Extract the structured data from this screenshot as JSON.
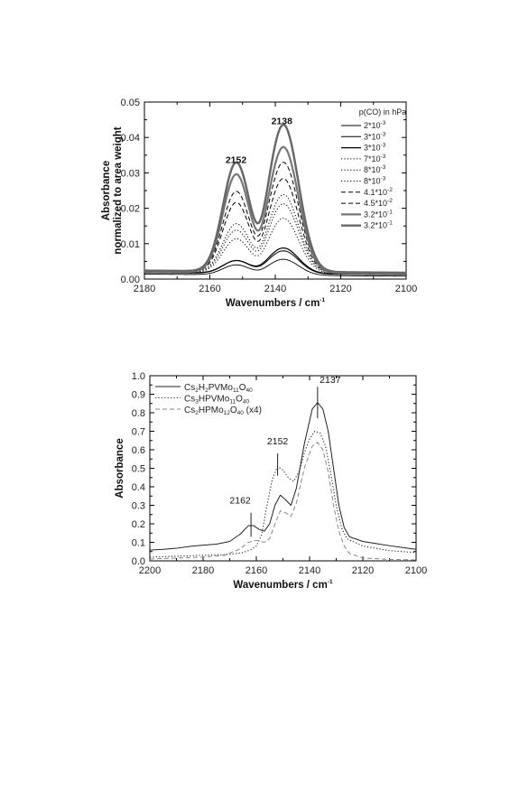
{
  "chart_data": [
    {
      "type": "line",
      "xlabel": "Wavenumbers / cm",
      "xlabel_sup": "-1",
      "ylabel": "Absorbance",
      "ylabel2": "normalized to area weight",
      "xlim": [
        2180,
        2100
      ],
      "ylim": [
        0,
        0.05
      ],
      "xticks": [
        2180,
        2160,
        2140,
        2120,
        2100
      ],
      "yticks": [
        0.0,
        0.01,
        0.02,
        0.03,
        0.04,
        0.05
      ],
      "ytick_labels": [
        "0.00",
        "0.01",
        "0.02",
        "0.03",
        "0.04",
        "0.05"
      ],
      "legend_title": "p(CO) in hPa",
      "legend_position": "top-right",
      "peak_labels": [
        {
          "text": "2152",
          "x": 2152,
          "y": 0.0315
        },
        {
          "text": "2138",
          "x": 2138,
          "y": 0.0425
        }
      ],
      "series": [
        {
          "name_base": "2*10",
          "name_exp": "-3",
          "style": "solid",
          "color": "#000000",
          "width": 0.9,
          "peaks": [
            0.0028,
            0.0045
          ],
          "baseline": 0.0008
        },
        {
          "name_base": "3*10",
          "name_exp": "-3",
          "style": "solid",
          "color": "#000000",
          "width": 1.0,
          "peaks": [
            0.0036,
            0.0065
          ],
          "baseline": 0.0012
        },
        {
          "name_base": "3*10",
          "name_exp": "-3",
          "style": "solid",
          "color": "#000000",
          "width": 1.2,
          "peaks": [
            0.0035,
            0.0072
          ],
          "baseline": 0.0013
        },
        {
          "name_base": "7*10",
          "name_exp": "-3",
          "style": "dotted",
          "color": "#000000",
          "width": 1.0,
          "peaks": [
            0.0095,
            0.0155
          ],
          "baseline": 0.0014
        },
        {
          "name_base": "8*10",
          "name_exp": "-3",
          "style": "dotted",
          "color": "#000000",
          "width": 1.0,
          "peaks": [
            0.0118,
            0.0195
          ],
          "baseline": 0.0015
        },
        {
          "name_base": "8*10",
          "name_exp": "-3",
          "style": "dotted",
          "color": "#000000",
          "width": 1.0,
          "peaks": [
            0.0135,
            0.022
          ],
          "baseline": 0.0016
        },
        {
          "name_base": "4.1*10",
          "name_exp": "-2",
          "style": "dashed",
          "color": "#000000",
          "width": 1.0,
          "peaks": [
            0.0195,
            0.0265
          ],
          "baseline": 0.0016
        },
        {
          "name_base": "4.5*10",
          "name_exp": "-2",
          "style": "dashed",
          "color": "#000000",
          "width": 1.0,
          "peaks": [
            0.0225,
            0.031
          ],
          "baseline": 0.0017
        },
        {
          "name_base": "3.2*10",
          "name_exp": "-1",
          "style": "solid",
          "color": "#777777",
          "width": 2.2,
          "peaks": [
            0.0275,
            0.0355
          ],
          "baseline": 0.0015
        },
        {
          "name_base": "3.2*10",
          "name_exp": "-1",
          "style": "solid",
          "color": "#666666",
          "width": 2.4,
          "peaks": [
            0.0305,
            0.0415
          ],
          "baseline": 0.0018
        }
      ]
    },
    {
      "type": "line",
      "xlabel": "Wavenumbers / cm",
      "xlabel_sup": "-1",
      "ylabel": "Absorbance",
      "xlim": [
        2200,
        2100
      ],
      "ylim": [
        0,
        1.0
      ],
      "xticks": [
        2200,
        2180,
        2160,
        2140,
        2120,
        2100
      ],
      "yticks": [
        0.0,
        0.1,
        0.2,
        0.3,
        0.4,
        0.5,
        0.6,
        0.7,
        0.8,
        0.9,
        1.0
      ],
      "ytick_labels": [
        "0.0",
        "0.1",
        "0.2",
        "0.3",
        "0.4",
        "0.5",
        "0.6",
        "0.7",
        "0.8",
        "0.9",
        "1.0"
      ],
      "legend_position": "top-left",
      "peak_labels": [
        {
          "text": "2162",
          "x": 2162,
          "y": 0.255
        },
        {
          "text": "2152",
          "x": 2152,
          "y": 0.58
        },
        {
          "text": "2137",
          "x": 2137,
          "y": 0.88
        }
      ],
      "series": [
        {
          "name_parts": [
            [
              "Cs",
              ""
            ],
            [
              "2",
              "sub"
            ],
            [
              "H",
              ""
            ],
            [
              "2",
              "sub"
            ],
            [
              "PVMo",
              ""
            ],
            [
              "11",
              "sub"
            ],
            [
              "O",
              ""
            ],
            [
              "40",
              "sub"
            ]
          ],
          "style": "solid",
          "color": "#222222",
          "width": 1.0,
          "points": [
            [
              2200,
              0.058
            ],
            [
              2195,
              0.062
            ],
            [
              2190,
              0.068
            ],
            [
              2185,
              0.078
            ],
            [
              2180,
              0.085
            ],
            [
              2175,
              0.09
            ],
            [
              2170,
              0.105
            ],
            [
              2166,
              0.145
            ],
            [
              2163,
              0.19
            ],
            [
              2161,
              0.19
            ],
            [
              2159,
              0.17
            ],
            [
              2157,
              0.16
            ],
            [
              2155,
              0.2
            ],
            [
              2153,
              0.3
            ],
            [
              2151,
              0.355
            ],
            [
              2149,
              0.33
            ],
            [
              2147,
              0.3
            ],
            [
              2145,
              0.39
            ],
            [
              2142,
              0.63
            ],
            [
              2139,
              0.82
            ],
            [
              2137,
              0.855
            ],
            [
              2135,
              0.82
            ],
            [
              2133,
              0.7
            ],
            [
              2131,
              0.5
            ],
            [
              2129,
              0.3
            ],
            [
              2127,
              0.18
            ],
            [
              2125,
              0.13
            ],
            [
              2120,
              0.105
            ],
            [
              2115,
              0.093
            ],
            [
              2110,
              0.082
            ],
            [
              2105,
              0.072
            ],
            [
              2100,
              0.062
            ]
          ]
        },
        {
          "name_parts": [
            [
              "Cs",
              ""
            ],
            [
              "3",
              "sub"
            ],
            [
              "HPVMo",
              ""
            ],
            [
              "11",
              "sub"
            ],
            [
              "O",
              ""
            ],
            [
              "40",
              "sub"
            ]
          ],
          "style": "dotted",
          "color": "#222222",
          "width": 1.1,
          "points": [
            [
              2200,
              0.02
            ],
            [
              2190,
              0.025
            ],
            [
              2180,
              0.03
            ],
            [
              2170,
              0.035
            ],
            [
              2165,
              0.045
            ],
            [
              2162,
              0.06
            ],
            [
              2160,
              0.08
            ],
            [
              2158,
              0.14
            ],
            [
              2156,
              0.3
            ],
            [
              2154,
              0.44
            ],
            [
              2152,
              0.51
            ],
            [
              2150,
              0.49
            ],
            [
              2148,
              0.45
            ],
            [
              2146,
              0.43
            ],
            [
              2144,
              0.48
            ],
            [
              2142,
              0.58
            ],
            [
              2140,
              0.66
            ],
            [
              2138,
              0.7
            ],
            [
              2136,
              0.69
            ],
            [
              2134,
              0.62
            ],
            [
              2132,
              0.47
            ],
            [
              2130,
              0.3
            ],
            [
              2128,
              0.18
            ],
            [
              2126,
              0.12
            ],
            [
              2120,
              0.08
            ],
            [
              2110,
              0.055
            ],
            [
              2100,
              0.045
            ]
          ]
        },
        {
          "name_parts": [
            [
              "Cs",
              ""
            ],
            [
              "2",
              "sub"
            ],
            [
              "HPMo",
              ""
            ],
            [
              "12",
              "sub"
            ],
            [
              "O",
              ""
            ],
            [
              "40",
              "sub"
            ],
            [
              " (x4)",
              ""
            ]
          ],
          "style": "dashed",
          "color": "#888888",
          "width": 1.0,
          "points": [
            [
              2200,
              0.01
            ],
            [
              2190,
              0.015
            ],
            [
              2180,
              0.02
            ],
            [
              2172,
              0.03
            ],
            [
              2166,
              0.065
            ],
            [
              2163,
              0.1
            ],
            [
              2160,
              0.11
            ],
            [
              2157,
              0.1
            ],
            [
              2155,
              0.12
            ],
            [
              2153,
              0.2
            ],
            [
              2151,
              0.27
            ],
            [
              2149,
              0.26
            ],
            [
              2147,
              0.24
            ],
            [
              2145,
              0.31
            ],
            [
              2142,
              0.5
            ],
            [
              2139,
              0.62
            ],
            [
              2137,
              0.64
            ],
            [
              2135,
              0.6
            ],
            [
              2133,
              0.48
            ],
            [
              2131,
              0.3
            ],
            [
              2129,
              0.16
            ],
            [
              2127,
              0.08
            ],
            [
              2125,
              0.04
            ],
            [
              2120,
              0.015
            ],
            [
              2110,
              0.008
            ],
            [
              2100,
              0.005
            ]
          ]
        }
      ]
    }
  ]
}
